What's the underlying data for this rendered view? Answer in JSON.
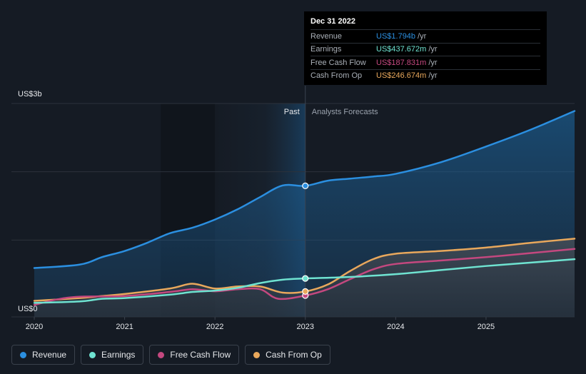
{
  "chart_data": {
    "type": "line",
    "y_axis": {
      "top_label": "US$3b",
      "bottom_label": "US$0",
      "ylim": [
        0,
        3.0
      ],
      "unit": "US$ billions"
    },
    "x_ticks": [
      "2020",
      "2021",
      "2022",
      "2023",
      "2024",
      "2025"
    ],
    "xlim": [
      2020.0,
      2025.98
    ],
    "divider_x": 2023.0,
    "past_label": "Past",
    "forecast_label": "Analysts Forecasts",
    "series": [
      {
        "name": "Revenue",
        "color": "#2b8fe0",
        "values": [
          [
            2020.0,
            0.59
          ],
          [
            2020.5,
            0.64
          ],
          [
            2020.75,
            0.75
          ],
          [
            2021.0,
            0.84
          ],
          [
            2021.25,
            0.96
          ],
          [
            2021.5,
            1.1
          ],
          [
            2021.75,
            1.18
          ],
          [
            2022.0,
            1.3
          ],
          [
            2022.25,
            1.45
          ],
          [
            2022.5,
            1.63
          ],
          [
            2022.75,
            1.8
          ],
          [
            2023.0,
            1.794
          ],
          [
            2023.25,
            1.87
          ],
          [
            2023.5,
            1.9
          ],
          [
            2023.75,
            1.93
          ],
          [
            2024.0,
            1.97
          ],
          [
            2024.5,
            2.14
          ],
          [
            2025.0,
            2.37
          ],
          [
            2025.5,
            2.62
          ],
          [
            2025.98,
            2.89
          ]
        ]
      },
      {
        "name": "Earnings",
        "color": "#6fe3d1",
        "values": [
          [
            2020.0,
            0.08
          ],
          [
            2020.5,
            0.1
          ],
          [
            2020.75,
            0.14
          ],
          [
            2021.0,
            0.15
          ],
          [
            2021.5,
            0.2
          ],
          [
            2021.75,
            0.24
          ],
          [
            2022.0,
            0.26
          ],
          [
            2022.25,
            0.3
          ],
          [
            2022.5,
            0.37
          ],
          [
            2022.75,
            0.42
          ],
          [
            2023.0,
            0.437672
          ],
          [
            2023.5,
            0.46
          ],
          [
            2024.0,
            0.5
          ],
          [
            2024.5,
            0.56
          ],
          [
            2025.0,
            0.62
          ],
          [
            2025.5,
            0.67
          ],
          [
            2025.98,
            0.72
          ]
        ]
      },
      {
        "name": "Free Cash Flow",
        "color": "#c4487f",
        "values": [
          [
            2020.0,
            0.05
          ],
          [
            2020.25,
            0.13
          ],
          [
            2020.5,
            0.17
          ],
          [
            2021.0,
            0.18
          ],
          [
            2021.5,
            0.24
          ],
          [
            2021.75,
            0.28
          ],
          [
            2022.0,
            0.25
          ],
          [
            2022.25,
            0.28
          ],
          [
            2022.5,
            0.28
          ],
          [
            2022.7,
            0.14
          ],
          [
            2023.0,
            0.187831
          ],
          [
            2023.25,
            0.28
          ],
          [
            2023.5,
            0.43
          ],
          [
            2023.75,
            0.57
          ],
          [
            2024.0,
            0.65
          ],
          [
            2024.5,
            0.7
          ],
          [
            2025.0,
            0.75
          ],
          [
            2025.5,
            0.81
          ],
          [
            2025.98,
            0.87
          ]
        ]
      },
      {
        "name": "Cash From Op",
        "color": "#e9a85c",
        "values": [
          [
            2020.0,
            0.11
          ],
          [
            2020.5,
            0.15
          ],
          [
            2020.75,
            0.18
          ],
          [
            2021.0,
            0.21
          ],
          [
            2021.5,
            0.29
          ],
          [
            2021.75,
            0.36
          ],
          [
            2022.0,
            0.29
          ],
          [
            2022.25,
            0.32
          ],
          [
            2022.5,
            0.32
          ],
          [
            2022.75,
            0.23
          ],
          [
            2023.0,
            0.246674
          ],
          [
            2023.25,
            0.35
          ],
          [
            2023.5,
            0.55
          ],
          [
            2023.75,
            0.72
          ],
          [
            2024.0,
            0.8
          ],
          [
            2024.5,
            0.84
          ],
          [
            2025.0,
            0.89
          ],
          [
            2025.5,
            0.96
          ],
          [
            2025.98,
            1.02
          ]
        ]
      }
    ]
  },
  "tooltip": {
    "date": "Dec 31 2022",
    "rows": [
      {
        "label": "Revenue",
        "value": "US$1.794b",
        "unit": "/yr",
        "color": "#2b8fe0"
      },
      {
        "label": "Earnings",
        "value": "US$437.672m",
        "unit": "/yr",
        "color": "#6fe3d1"
      },
      {
        "label": "Free Cash Flow",
        "value": "US$187.831m",
        "unit": "/yr",
        "color": "#c4487f"
      },
      {
        "label": "Cash From Op",
        "value": "US$246.674m",
        "unit": "/yr",
        "color": "#e9a85c"
      }
    ]
  },
  "legend": [
    {
      "label": "Revenue",
      "color": "#2b8fe0"
    },
    {
      "label": "Earnings",
      "color": "#6fe3d1"
    },
    {
      "label": "Free Cash Flow",
      "color": "#c4487f"
    },
    {
      "label": "Cash From Op",
      "color": "#e9a85c"
    }
  ]
}
